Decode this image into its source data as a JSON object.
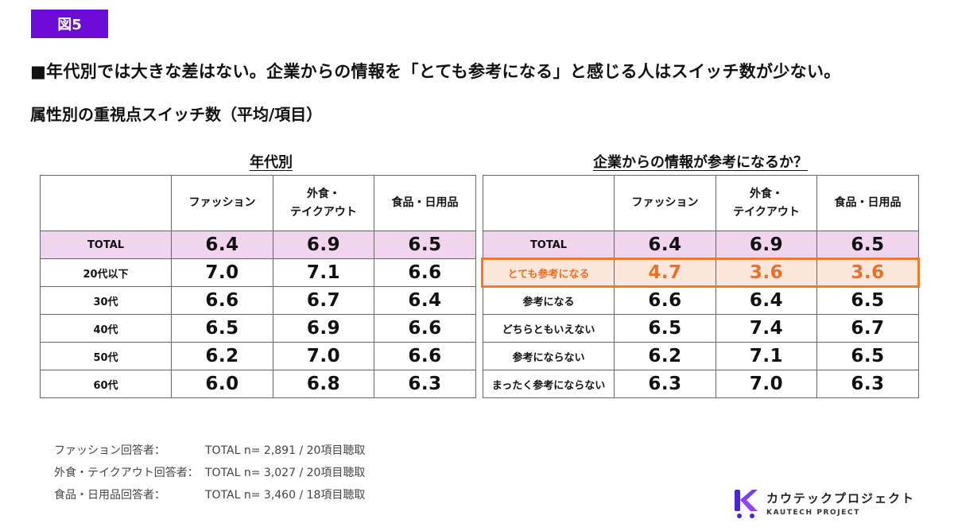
{
  "figure_tag": "図5",
  "headline": "■年代別では大きな差はない。企業からの情報を「とても参考になる」と感じる人はスイッチ数が少ない。",
  "subhead": "属性別の重視点スイッチ数（平均/項目）",
  "left_table": {
    "title": "年代別",
    "columns": [
      "ファッション",
      "外食・\nテイクアウト",
      "食品・日用品"
    ],
    "rows": [
      {
        "label": "TOTAL",
        "values": [
          "6.4",
          "6.9",
          "6.5"
        ]
      },
      {
        "label": "20代以下",
        "values": [
          "7.0",
          "7.1",
          "6.6"
        ]
      },
      {
        "label": "30代",
        "values": [
          "6.6",
          "6.7",
          "6.4"
        ]
      },
      {
        "label": "40代",
        "values": [
          "6.5",
          "6.9",
          "6.6"
        ]
      },
      {
        "label": "50代",
        "values": [
          "6.2",
          "7.0",
          "6.6"
        ]
      },
      {
        "label": "60代",
        "values": [
          "6.0",
          "6.8",
          "6.3"
        ]
      }
    ]
  },
  "right_table": {
    "title": "企業からの情報が参考になるか？",
    "columns": [
      "ファッション",
      "外食・\nテイクアウト",
      "食品・日用品"
    ],
    "rows": [
      {
        "label": "TOTAL",
        "values": [
          "6.4",
          "6.9",
          "6.5"
        ]
      },
      {
        "label": "とても参考になる",
        "values": [
          "4.7",
          "3.6",
          "3.6"
        ]
      },
      {
        "label": "参考になる",
        "values": [
          "6.6",
          "6.4",
          "6.5"
        ]
      },
      {
        "label": "どちらともいえない",
        "values": [
          "6.5",
          "7.4",
          "6.7"
        ]
      },
      {
        "label": "参考にならない",
        "values": [
          "6.2",
          "7.1",
          "6.5"
        ]
      },
      {
        "label": "まったく参考にならない",
        "values": [
          "6.3",
          "7.0",
          "6.3"
        ]
      }
    ]
  },
  "notes": [
    {
      "label": "ファッション回答者：",
      "value": "TOTAL n= 2,891 / 20項目聴取"
    },
    {
      "label": "外食・テイクアウト回答者：",
      "value": "TOTAL n= 3,027 / 20項目聴取"
    },
    {
      "label": "食品・日用品回答者：",
      "value": "TOTAL n= 3,460 / 18項目聴取"
    }
  ],
  "logo": {
    "jp": "カウテックプロジェクト",
    "en": "KAUTECH PROJECT"
  },
  "colors": {
    "accent": "#6a0bd6",
    "total_row": "#f1d5ef",
    "highlight": "#ee7a2e",
    "highlight_fill": "#fce7db"
  }
}
